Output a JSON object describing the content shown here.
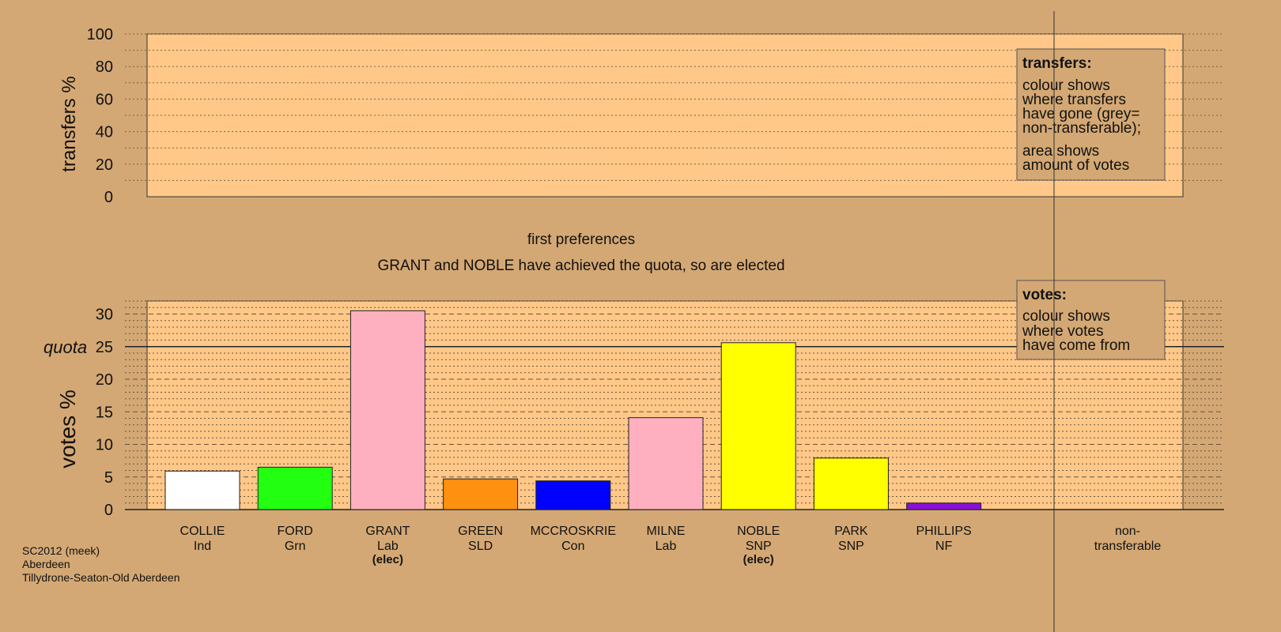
{
  "chart_data": [
    {
      "type": "bar",
      "panel": "transfers",
      "ylabel": "transfers %",
      "ylim": [
        0,
        100
      ],
      "yticks": [
        0,
        20,
        40,
        60,
        80,
        100
      ],
      "grid": true,
      "series": [],
      "legend": {
        "placement": "top-right",
        "title": "transfers:",
        "lines1": [
          "colour shows",
          "where transfers",
          "have gone (grey=",
          "non-transferable);"
        ],
        "lines2": [
          "area shows",
          "amount of votes"
        ]
      }
    },
    {
      "type": "bar",
      "panel": "votes",
      "title": "first preferences",
      "subtitle": "GRANT and NOBLE have achieved the quota, so are elected",
      "ylabel": "votes %",
      "ylim": [
        0,
        32
      ],
      "yticks": [
        0,
        5,
        10,
        15,
        20,
        25,
        30
      ],
      "quota_label": "quota",
      "quota": 25,
      "grid": true,
      "categories": [
        {
          "name": "COLLIE",
          "party": "Ind",
          "value": 5.9,
          "color": "#ffffff",
          "elected": ""
        },
        {
          "name": "FORD",
          "party": "Grn",
          "value": 6.5,
          "color": "#22ff11",
          "elected": ""
        },
        {
          "name": "GRANT",
          "party": "Lab",
          "value": 30.5,
          "color": "#ffb0c0",
          "elected": "(elec)"
        },
        {
          "name": "GREEN",
          "party": "SLD",
          "value": 4.7,
          "color": "#ff9010",
          "elected": ""
        },
        {
          "name": "MCCROSKRIE",
          "party": "Con",
          "value": 4.4,
          "color": "#0000ff",
          "elected": ""
        },
        {
          "name": "MILNE",
          "party": "Lab",
          "value": 14.1,
          "color": "#ffb0c0",
          "elected": ""
        },
        {
          "name": "NOBLE",
          "party": "SNP",
          "value": 25.6,
          "color": "#ffff00",
          "elected": "(elec)"
        },
        {
          "name": "PARK",
          "party": "SNP",
          "value": 7.9,
          "color": "#ffff00",
          "elected": ""
        },
        {
          "name": "PHILLIPS",
          "party": "NF",
          "value": 1.0,
          "color": "#8a10d8",
          "elected": ""
        }
      ],
      "nontransferable_label": [
        "non-",
        "transferable"
      ],
      "legend": {
        "placement": "top-right",
        "title": "votes:",
        "lines": [
          "colour shows",
          "where votes",
          "have come from"
        ]
      }
    }
  ],
  "footer": {
    "lines": [
      "SC2012 (meek)",
      "Aberdeen",
      "Tillydrone-Seaton-Old Aberdeen"
    ]
  }
}
